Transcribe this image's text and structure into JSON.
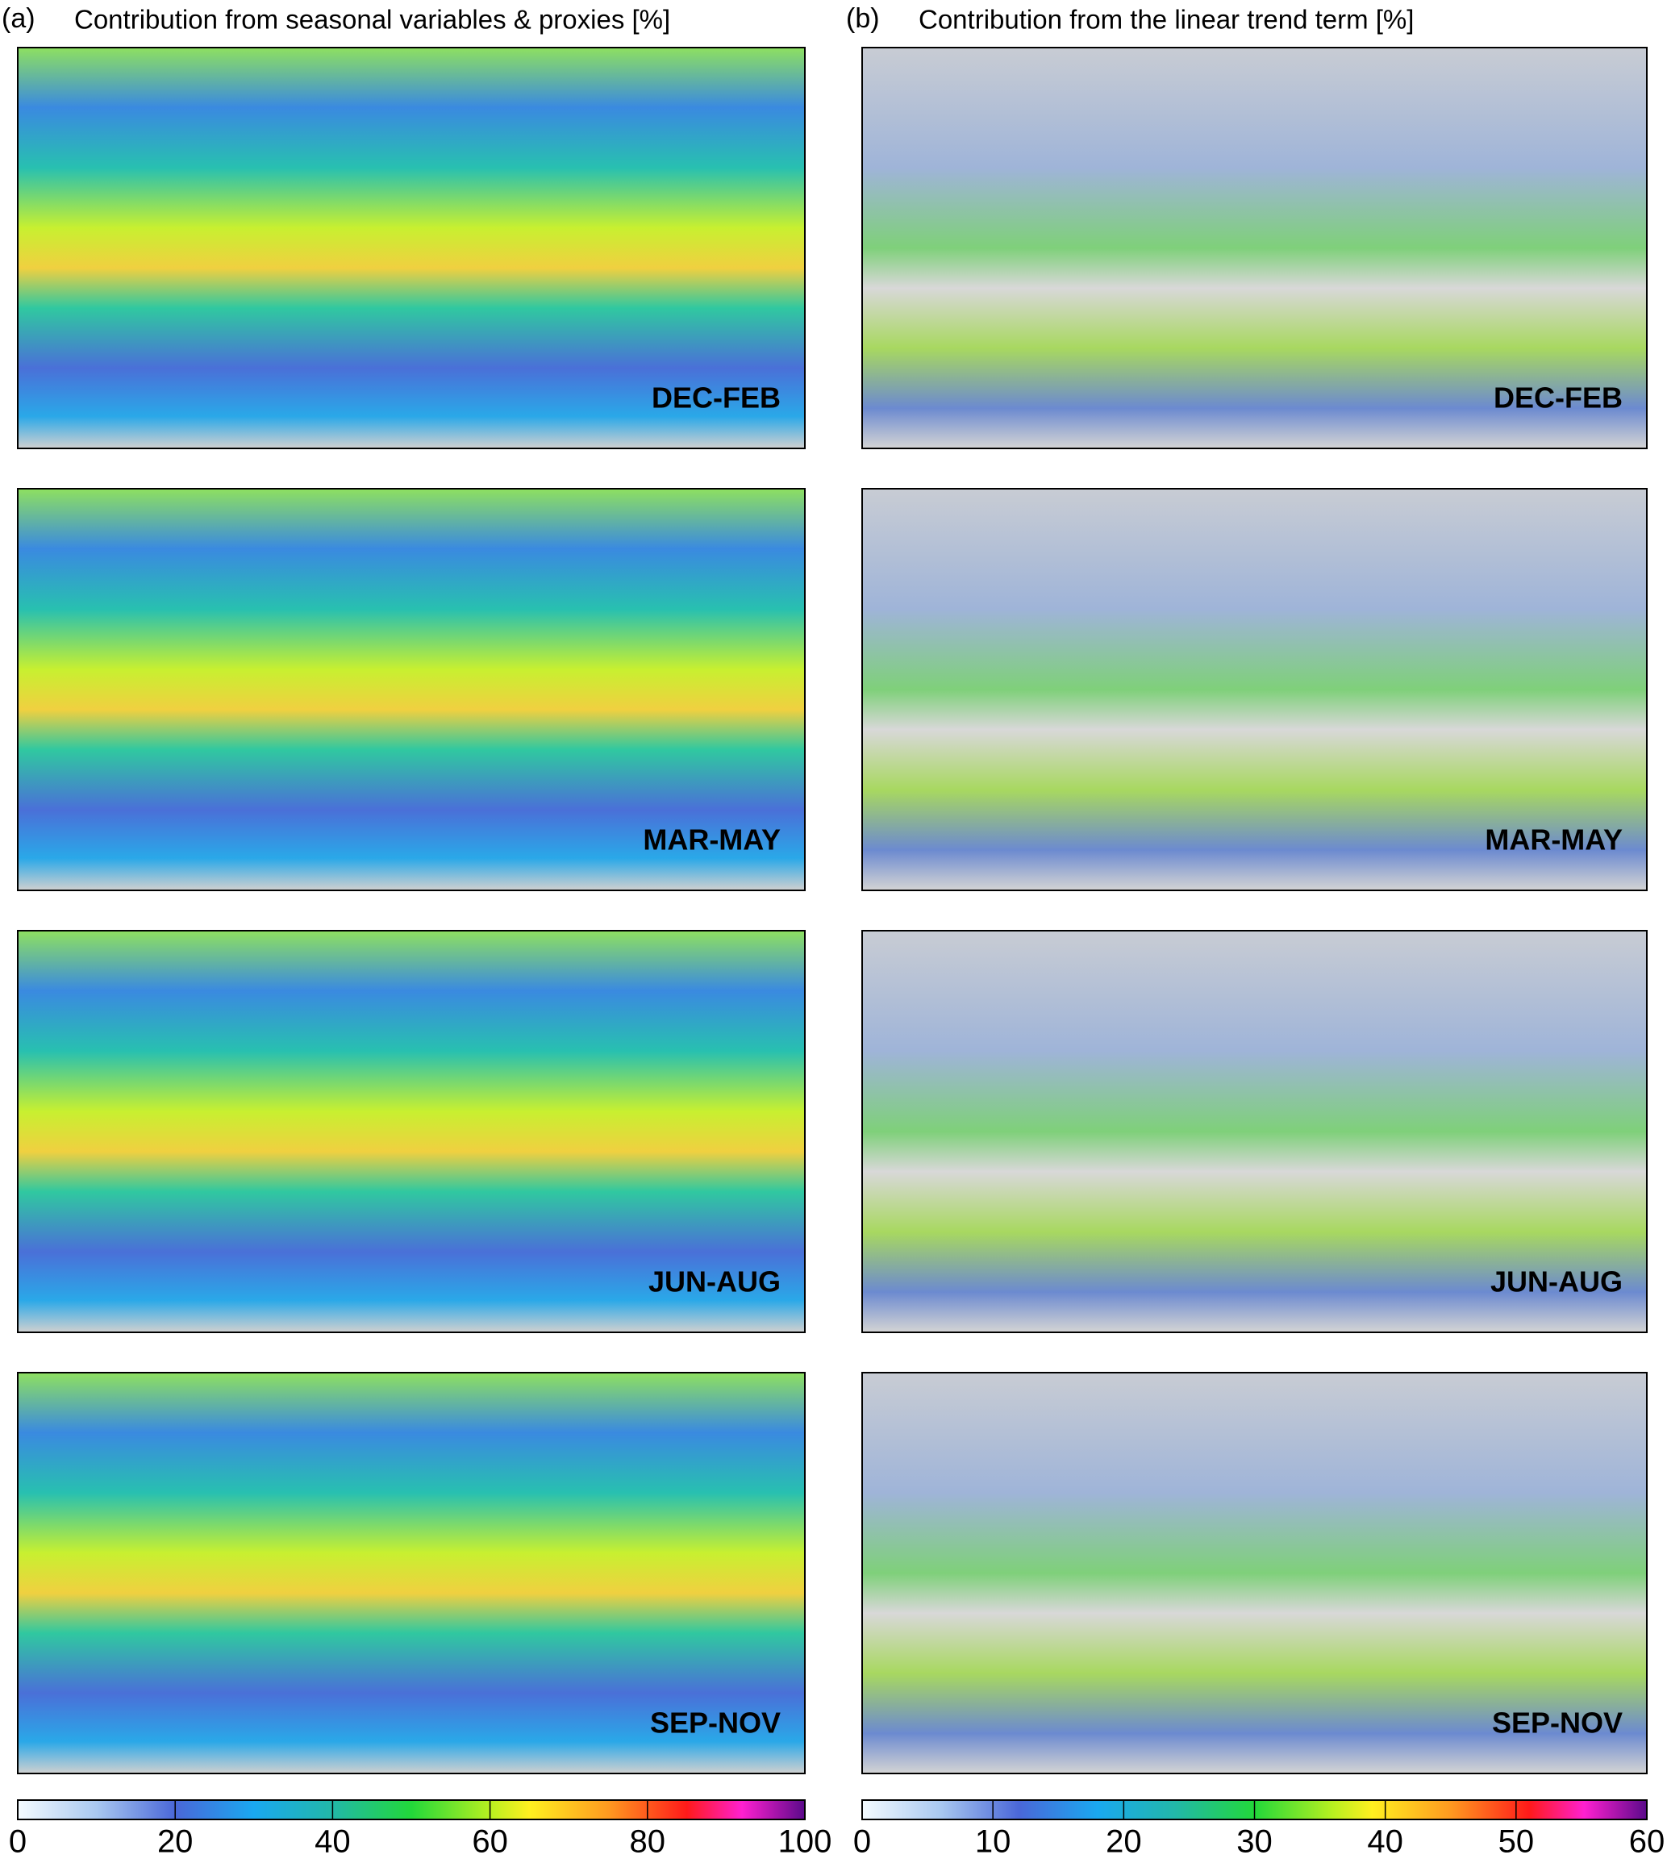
{
  "panels": [
    {
      "label": "(a)",
      "title": "Contribution from seasonal variables & proxies [%]",
      "seasons": [
        "DEC-FEB",
        "MAR-MAY",
        "JUN-AUG",
        "SEP-NOV"
      ],
      "colorbar": {
        "range": [
          0,
          100
        ],
        "ticks": [
          0,
          20,
          40,
          60,
          80,
          100
        ]
      }
    },
    {
      "label": "(b)",
      "title": "Contribution from the linear trend term [%]",
      "seasons": [
        "DEC-FEB",
        "MAR-MAY",
        "JUN-AUG",
        "SEP-NOV"
      ],
      "colorbar": {
        "range": [
          0,
          60
        ],
        "ticks": [
          0,
          10,
          20,
          30,
          40,
          50,
          60
        ]
      }
    }
  ]
}
